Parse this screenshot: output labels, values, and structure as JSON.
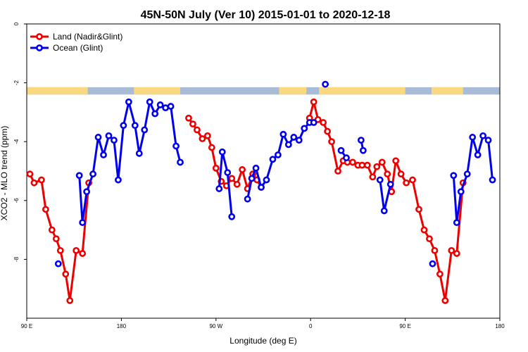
{
  "chart_data": {
    "type": "line",
    "title": "45N-50N July (Ver 10)   2015-01-01 to 2020-12-18",
    "xlabel": "Longitude (deg E)",
    "ylabel": "XCO2 - MLO trend (ppm)",
    "xlim": [
      90,
      540
    ],
    "ylim": [
      -10,
      0
    ],
    "x_ticks": [
      {
        "value": 90,
        "label": "90 E"
      },
      {
        "value": 180,
        "label": "180"
      },
      {
        "value": 270,
        "label": "90 W"
      },
      {
        "value": 360,
        "label": "0"
      },
      {
        "value": 450,
        "label": "90 E"
      },
      {
        "value": 540,
        "label": "180"
      }
    ],
    "y_ticks": [
      {
        "value": 0,
        "label": "0"
      },
      {
        "value": -2,
        "label": "-2"
      },
      {
        "value": -4,
        "label": "-4"
      },
      {
        "value": -6,
        "label": "-6"
      },
      {
        "value": -8,
        "label": "-8"
      }
    ],
    "legend_position": "top-left",
    "land_mask_band": {
      "y_top": -2.15,
      "y_bottom": -2.4,
      "land_color": "#F8D880",
      "ocean_color": "#A8BCD8"
    },
    "series": [
      {
        "name": "Land (Nadir&Glint)",
        "color": "#EE0000",
        "segments": [
          [
            [
              93,
              -5.1
            ],
            [
              97,
              -5.4
            ],
            [
              104,
              -5.3
            ],
            [
              108,
              -6.3
            ],
            [
              114,
              -7.0
            ],
            [
              118,
              -7.3
            ],
            [
              122,
              -7.7
            ],
            [
              127,
              -8.5
            ],
            [
              131,
              -9.4
            ],
            [
              137,
              -7.7
            ],
            [
              143,
              -7.8
            ],
            [
              149,
              -5.4
            ]
          ],
          [
            [
              244,
              -3.2
            ],
            [
              248,
              -3.4
            ],
            [
              252,
              -3.6
            ],
            [
              257,
              -3.9
            ],
            [
              262,
              -3.8
            ],
            [
              266,
              -4.2
            ],
            [
              270,
              -4.9
            ],
            [
              275,
              -5.35
            ],
            [
              280,
              -5.5
            ],
            [
              285,
              -5.25
            ],
            [
              290,
              -5.45
            ],
            [
              295,
              -4.95
            ],
            [
              300,
              -5.6
            ],
            [
              305,
              -5.1
            ],
            [
              309,
              -5.3
            ],
            [
              313,
              -5.55
            ]
          ],
          [
            [
              359,
              -3.2
            ],
            [
              363,
              -2.65
            ],
            [
              367,
              -3.25
            ],
            [
              372,
              -3.35
            ],
            [
              376,
              -3.65
            ],
            [
              380,
              -4.0
            ],
            [
              386,
              -5.0
            ],
            [
              391,
              -4.65
            ],
            [
              395,
              -4.7
            ],
            [
              400,
              -4.7
            ],
            [
              405,
              -4.8
            ],
            [
              409,
              -4.8
            ],
            [
              414,
              -4.8
            ],
            [
              419,
              -5.2
            ],
            [
              423,
              -4.85
            ],
            [
              428,
              -4.7
            ],
            [
              433,
              -5.1
            ],
            [
              437,
              -5.7
            ],
            [
              441,
              -4.65
            ],
            [
              446,
              -5.1
            ],
            [
              451,
              -5.4
            ],
            [
              457,
              -5.3
            ],
            [
              463,
              -6.3
            ],
            [
              468,
              -7.0
            ],
            [
              473,
              -7.3
            ],
            [
              478,
              -7.7
            ],
            [
              483,
              -8.5
            ],
            [
              488,
              -9.4
            ],
            [
              494,
              -7.7
            ],
            [
              499,
              -7.8
            ],
            [
              505,
              -5.4
            ]
          ]
        ]
      },
      {
        "name": "Ocean (Glint)",
        "color": "#0000EE",
        "segments": [
          [
            [
              120,
              -8.15
            ]
          ],
          [
            [
              140,
              -5.15
            ],
            [
              143,
              -6.75
            ],
            [
              147,
              -5.7
            ],
            [
              153,
              -5.1
            ],
            [
              158,
              -3.85
            ],
            [
              163,
              -4.45
            ],
            [
              168,
              -3.8
            ],
            [
              173,
              -3.95
            ],
            [
              177,
              -5.3
            ],
            [
              182,
              -3.45
            ],
            [
              187,
              -2.65
            ],
            [
              193,
              -3.45
            ],
            [
              197,
              -4.4
            ],
            [
              202,
              -3.6
            ],
            [
              207,
              -2.65
            ],
            [
              212,
              -3.05
            ],
            [
              217,
              -2.75
            ],
            [
              222,
              -2.85
            ],
            [
              227,
              -2.8
            ],
            [
              232,
              -4.15
            ],
            [
              236,
              -4.7
            ]
          ],
          [
            [
              273,
              -5.6
            ],
            [
              276,
              -4.35
            ],
            [
              281,
              -5.05
            ],
            [
              285,
              -6.55
            ]
          ],
          [
            [
              300,
              -5.95
            ],
            [
              304,
              -5.25
            ],
            [
              308,
              -4.9
            ],
            [
              313,
              -5.55
            ],
            [
              318,
              -5.3
            ],
            [
              324,
              -4.6
            ],
            [
              329,
              -4.45
            ],
            [
              334,
              -3.75
            ],
            [
              339,
              -4.1
            ],
            [
              344,
              -3.85
            ],
            [
              349,
              -3.95
            ],
            [
              354,
              -3.55
            ],
            [
              359,
              -3.35
            ],
            [
              363,
              -3.35
            ]
          ],
          [
            [
              374,
              -2.05
            ]
          ],
          [
            [
              389,
              -4.3
            ],
            [
              394,
              -4.55
            ]
          ],
          [
            [
              408,
              -3.95
            ],
            [
              410,
              -4.3
            ]
          ],
          [
            [
              426,
              -5.3
            ],
            [
              430,
              -6.35
            ],
            [
              436,
              -5.45
            ]
          ],
          [
            [
              476,
              -8.15
            ]
          ],
          [
            [
              496,
              -5.15
            ],
            [
              499,
              -6.75
            ],
            [
              503,
              -5.7
            ],
            [
              509,
              -5.1
            ],
            [
              514,
              -3.85
            ],
            [
              519,
              -4.45
            ],
            [
              524,
              -3.8
            ],
            [
              529,
              -3.95
            ],
            [
              533,
              -5.3
            ]
          ]
        ]
      }
    ]
  }
}
